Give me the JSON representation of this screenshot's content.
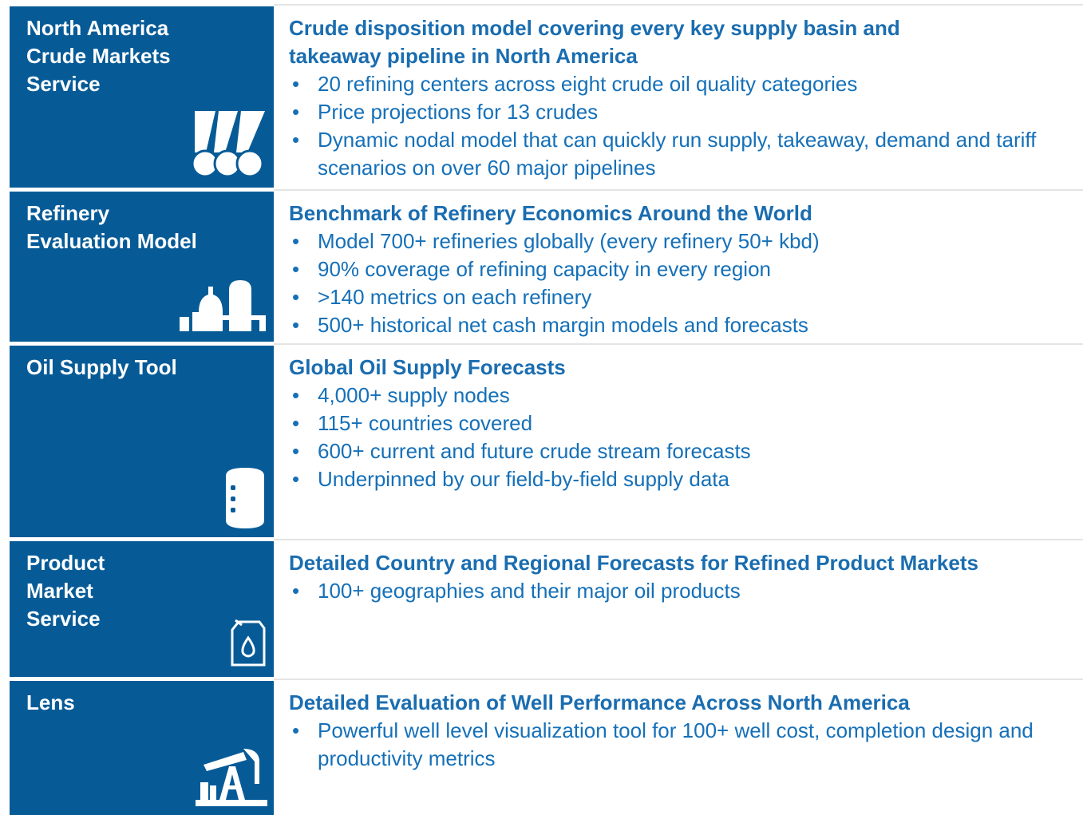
{
  "rows": [
    {
      "title": [
        "North America",
        "Crude Markets",
        "Service"
      ],
      "heading": "Crude disposition model covering every key supply basin and takeaway pipeline in North America",
      "bullets": [
        "20 refining centers across eight crude oil quality categories",
        "Price projections for 13 crudes",
        "Dynamic nodal model that can quickly run supply, takeaway, demand and tariff scenarios on over 60 major pipelines"
      ]
    },
    {
      "title": [
        "Refinery",
        "Evaluation Model"
      ],
      "heading": "Benchmark of Refinery Economics Around the World",
      "bullets": [
        "Model 700+ refineries globally (every refinery 50+ kbd)",
        "90% coverage of refining capacity in every region",
        ">140 metrics on each refinery",
        "500+ historical net cash margin models and forecasts"
      ]
    },
    {
      "title": [
        "Oil Supply Tool"
      ],
      "heading": "Global Oil Supply Forecasts",
      "bullets": [
        "4,000+ supply nodes",
        "115+ countries covered",
        "600+ current and future crude stream forecasts",
        "Underpinned by our field-by-field supply data"
      ]
    },
    {
      "title": [
        "Product",
        "Market",
        "Service"
      ],
      "heading": "Detailed Country and Regional Forecasts for Refined Product Markets",
      "bullets": [
        "100+ geographies and their major oil products"
      ]
    },
    {
      "title": [
        "Lens"
      ],
      "heading": "Detailed Evaluation of Well Performance Across North America",
      "bullets": [
        "Powerful well level visualization tool for 100+ well cost, completion design and productivity metrics"
      ]
    }
  ]
}
